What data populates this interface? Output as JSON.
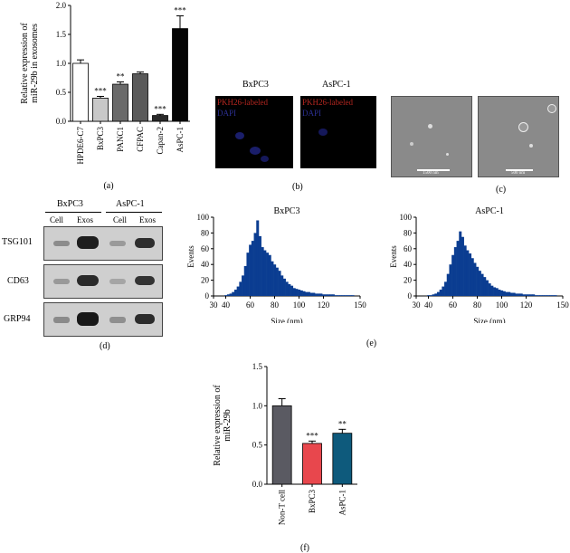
{
  "charts": {
    "a": {
      "type": "bar",
      "ylabel_lines": [
        "Relative expression of",
        "miR-29b in exosomes"
      ],
      "ylim": [
        0,
        2.0
      ],
      "yticks": [
        "0.0",
        "0.5",
        "1.0",
        "1.5",
        "2.0"
      ],
      "categories": [
        "HPDE6-C7",
        "BxPC3",
        "PANC1",
        "CFPAC",
        "Capan-2",
        "AsPC-1"
      ],
      "values": [
        1.0,
        0.4,
        0.64,
        0.82,
        0.1,
        1.6
      ],
      "errors": [
        0.06,
        0.03,
        0.04,
        0.03,
        0.02,
        0.22
      ],
      "significance": [
        "",
        "***",
        "**",
        "",
        "***",
        "***"
      ],
      "colors": [
        "#ffffff",
        "#c8c8c8",
        "#6a6a6a",
        "#5a5a5a",
        "#2a2a2a",
        "#050505"
      ],
      "panel_label": "(a)"
    },
    "e1": {
      "type": "bar",
      "title": "BxPC3",
      "xlabel": "Size (nm)",
      "ylabel": "Events",
      "xlim": [
        30,
        150
      ],
      "ylim": [
        0,
        100
      ],
      "xticks": [
        "30",
        "40",
        "60",
        "80",
        "100",
        "120",
        "150"
      ],
      "yticks": [
        "0",
        "20",
        "40",
        "60",
        "80",
        "100"
      ],
      "x": [
        40,
        42,
        44,
        46,
        48,
        50,
        52,
        54,
        56,
        58,
        60,
        62,
        64,
        66,
        68,
        70,
        72,
        74,
        76,
        78,
        80,
        82,
        84,
        86,
        88,
        90,
        92,
        94,
        96,
        98,
        100,
        102,
        104,
        106,
        108,
        110,
        112,
        114,
        116,
        118,
        120,
        122,
        124,
        126,
        128,
        130,
        132,
        134,
        136,
        138,
        140,
        142,
        144
      ],
      "values": [
        1,
        2,
        3,
        5,
        8,
        12,
        18,
        26,
        38,
        55,
        65,
        70,
        80,
        96,
        76,
        62,
        58,
        55,
        52,
        44,
        40,
        36,
        32,
        26,
        22,
        18,
        15,
        13,
        10,
        9,
        8,
        7,
        6,
        5,
        5,
        4,
        4,
        3,
        3,
        3,
        2,
        2,
        2,
        2,
        2,
        1,
        1,
        1,
        1,
        1,
        1,
        1,
        1
      ],
      "color": "#0b3d91"
    },
    "e2": {
      "type": "bar",
      "title": "AsPC-1",
      "xlabel": "Size (nm)",
      "ylabel": "Events",
      "xlim": [
        30,
        150
      ],
      "ylim": [
        0,
        100
      ],
      "xticks": [
        "30",
        "40",
        "60",
        "80",
        "100",
        "120",
        "150"
      ],
      "yticks": [
        "0",
        "20",
        "40",
        "60",
        "80",
        "100"
      ],
      "x": [
        40,
        42,
        44,
        46,
        48,
        50,
        52,
        54,
        56,
        58,
        60,
        62,
        64,
        66,
        68,
        70,
        72,
        74,
        76,
        78,
        80,
        82,
        84,
        86,
        88,
        90,
        92,
        94,
        96,
        98,
        100,
        102,
        104,
        106,
        108,
        110,
        112,
        114,
        116,
        118,
        120,
        122,
        124,
        126,
        128,
        130,
        132,
        134,
        136,
        138,
        140,
        142,
        144
      ],
      "values": [
        1,
        1,
        2,
        3,
        5,
        8,
        12,
        18,
        28,
        40,
        52,
        62,
        70,
        82,
        75,
        64,
        58,
        54,
        48,
        42,
        37,
        32,
        28,
        24,
        20,
        16,
        13,
        11,
        10,
        8,
        7,
        6,
        5,
        5,
        4,
        4,
        3,
        3,
        3,
        2,
        2,
        2,
        2,
        2,
        1,
        1,
        1,
        1,
        1,
        1,
        1,
        1,
        1
      ],
      "color": "#0b3d91"
    },
    "f": {
      "type": "bar",
      "ylabel_lines": [
        "Relative expression of",
        "miR-29b"
      ],
      "ylim": [
        0,
        1.5
      ],
      "yticks": [
        "0.0",
        "0.5",
        "1.0",
        "1.5"
      ],
      "categories": [
        "Non-T cell",
        "BxPC3",
        "AsPC-1"
      ],
      "values": [
        1.0,
        0.52,
        0.65
      ],
      "errors": [
        0.09,
        0.03,
        0.05
      ],
      "significance": [
        "",
        "***",
        "**"
      ],
      "colors": [
        "#5a5a62",
        "#e8474d",
        "#0e5a7c"
      ],
      "panel_label": "(f)"
    }
  },
  "panel_b": {
    "label": "(b)",
    "titles": [
      "BxPC3",
      "AsPC-1"
    ],
    "legend_red": "PKH26-labeled",
    "legend_blue": "DAPI"
  },
  "panel_c": {
    "label": "(c)",
    "scale_left": "1500 nm",
    "scale_right": "500 nm"
  },
  "panel_d": {
    "label": "(d)",
    "groups": [
      "BxPC3",
      "AsPC-1"
    ],
    "lanes": [
      "Cell",
      "Exos",
      "Cell",
      "Exos"
    ],
    "proteins": [
      "TSG101",
      "CD63",
      "GRP94"
    ]
  },
  "panel_e": {
    "label": "(e)"
  }
}
